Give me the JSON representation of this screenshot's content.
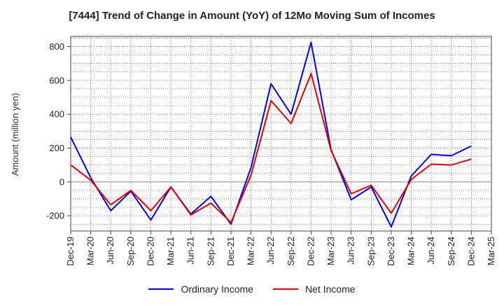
{
  "chart_data": {
    "type": "line",
    "title": "[7444]  Trend of Change in Amount (YoY) of 12Mo Moving Sum of Incomes",
    "ylabel": "Amount (million yen)",
    "xlabel": "",
    "x": [
      "Dec-19",
      "Mar-20",
      "Jun-20",
      "Sep-20",
      "Dec-20",
      "Mar-21",
      "Jun-21",
      "Sep-21",
      "Dec-21",
      "Mar-22",
      "Jun-22",
      "Sep-22",
      "Dec-22",
      "Mar-23",
      "Jun-23",
      "Sep-23",
      "Dec-23",
      "Mar-24",
      "Jun-24",
      "Sep-24",
      "Dec-24",
      "Mar-25"
    ],
    "ylim": [
      -290,
      860
    ],
    "yticks": [
      -200,
      0,
      200,
      400,
      600,
      800
    ],
    "grid": true,
    "legend_position": "bottom",
    "series": [
      {
        "name": "Ordinary Income",
        "color": "#0000dd",
        "values": [
          265,
          25,
          -170,
          -55,
          -225,
          -30,
          -190,
          -85,
          -250,
          85,
          580,
          400,
          825,
          190,
          -105,
          -30,
          -265,
          35,
          163,
          155,
          212,
          null
        ]
      },
      {
        "name": "Net Income",
        "color": "#dd0000",
        "values": [
          100,
          10,
          -135,
          -50,
          -170,
          -30,
          -195,
          -125,
          -240,
          40,
          480,
          345,
          640,
          185,
          -70,
          -20,
          -185,
          15,
          105,
          100,
          135,
          null
        ]
      }
    ]
  }
}
